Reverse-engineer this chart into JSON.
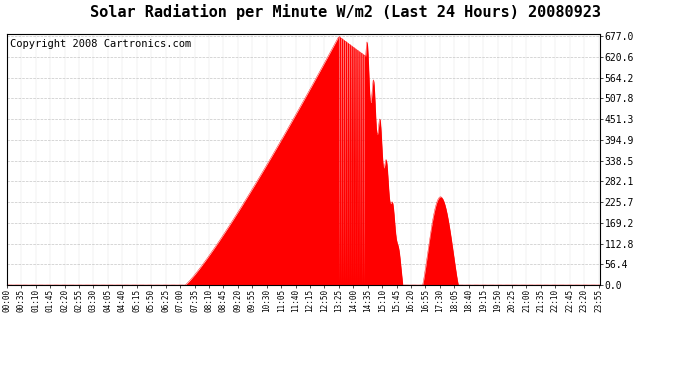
{
  "title": "Solar Radiation per Minute W/m2 (Last 24 Hours) 20080923",
  "copyright_text": "Copyright 2008 Cartronics.com",
  "y_max": 677.0,
  "y_min": 0.0,
  "y_ticks": [
    0.0,
    56.4,
    112.8,
    169.2,
    225.7,
    282.1,
    338.5,
    394.9,
    451.3,
    507.8,
    564.2,
    620.6,
    677.0
  ],
  "fill_color": "#FF0000",
  "line_color": "#FF0000",
  "dashed_line_color": "#FF0000",
  "bg_color": "#FFFFFF",
  "grid_color": "#C0C0C0",
  "title_fontsize": 11,
  "copyright_fontsize": 7.5
}
